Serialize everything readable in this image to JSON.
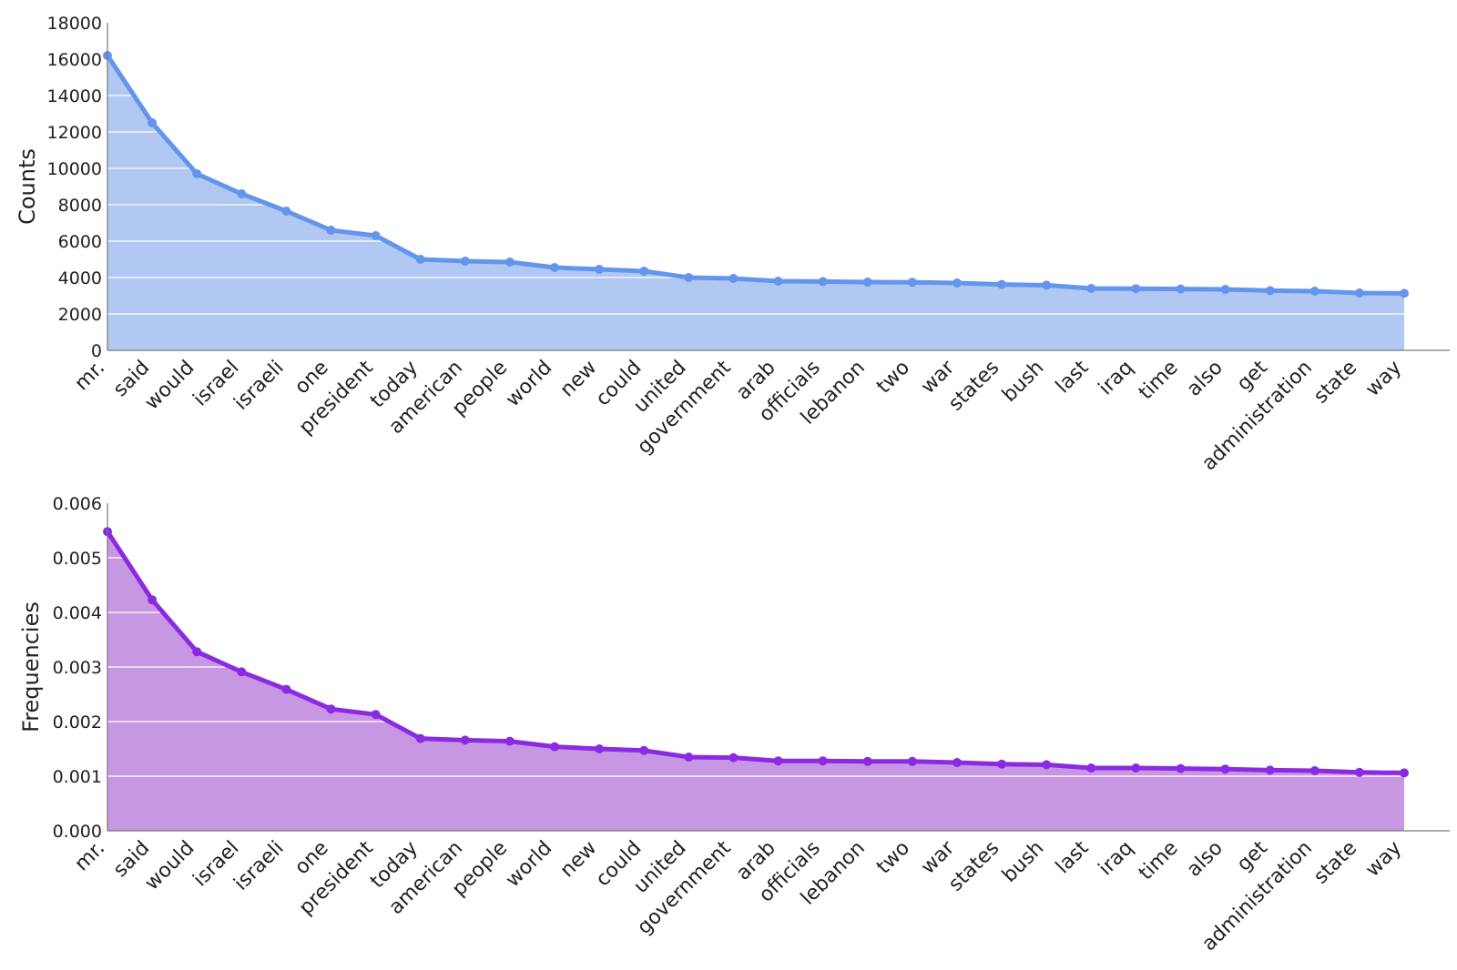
{
  "chart_data": [
    {
      "type": "area",
      "ylabel": "Counts",
      "xlabel": "",
      "ylim": [
        0,
        18000
      ],
      "yticks": [
        "0",
        "2000",
        "4000",
        "6000",
        "8000",
        "10000",
        "12000",
        "14000",
        "16000",
        "18000"
      ],
      "grid": true,
      "line_color": "#6495ed",
      "fill_color": "#b0c8f2",
      "categories": [
        "mr.",
        "said",
        "would",
        "israel",
        "israeli",
        "one",
        "president",
        "today",
        "american",
        "people",
        "world",
        "new",
        "could",
        "united",
        "government",
        "arab",
        "officials",
        "lebanon",
        "two",
        "war",
        "states",
        "bush",
        "last",
        "iraq",
        "time",
        "also",
        "get",
        "administration",
        "state",
        "way"
      ],
      "values": [
        16200,
        12500,
        9700,
        8600,
        7650,
        6600,
        6300,
        5000,
        4900,
        4850,
        4550,
        4450,
        4350,
        4000,
        3950,
        3800,
        3780,
        3750,
        3740,
        3700,
        3620,
        3580,
        3400,
        3390,
        3370,
        3350,
        3280,
        3250,
        3150,
        3130
      ]
    },
    {
      "type": "area",
      "ylabel": "Frequencies",
      "xlabel": "",
      "ylim": [
        0,
        0.006
      ],
      "yticks": [
        "0.000",
        "0.001",
        "0.002",
        "0.003",
        "0.004",
        "0.005",
        "0.006"
      ],
      "grid": true,
      "line_color": "#8a2be2",
      "fill_color": "#c897e4",
      "categories": [
        "mr.",
        "said",
        "would",
        "israel",
        "israeli",
        "one",
        "president",
        "today",
        "american",
        "people",
        "world",
        "new",
        "could",
        "united",
        "government",
        "arab",
        "officials",
        "lebanon",
        "two",
        "war",
        "states",
        "bush",
        "last",
        "iraq",
        "time",
        "also",
        "get",
        "administration",
        "state",
        "way"
      ],
      "values": [
        0.00548,
        0.00423,
        0.00328,
        0.00291,
        0.00259,
        0.00223,
        0.00213,
        0.00169,
        0.00166,
        0.00164,
        0.00154,
        0.0015,
        0.00147,
        0.00135,
        0.00134,
        0.00128,
        0.00128,
        0.00127,
        0.00127,
        0.00125,
        0.00122,
        0.00121,
        0.00115,
        0.00115,
        0.00114,
        0.00113,
        0.00111,
        0.0011,
        0.00107,
        0.00106
      ]
    }
  ]
}
